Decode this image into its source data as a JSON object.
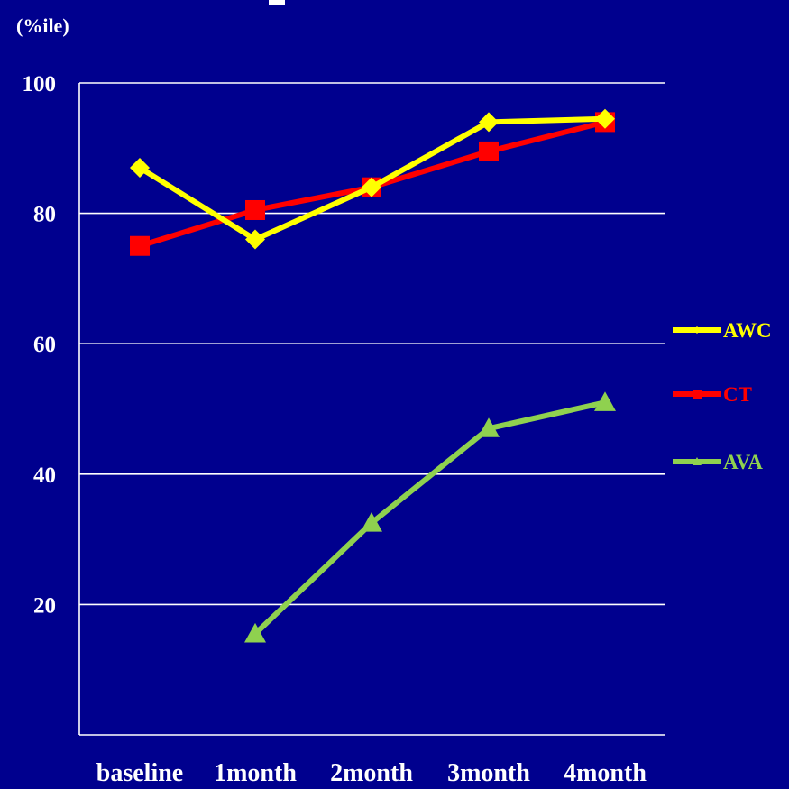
{
  "chart_data": {
    "type": "line",
    "title": "",
    "ylabel": "(%ile)",
    "xlabel": "",
    "categories": [
      "baseline",
      "1month",
      "2month",
      "3month",
      "4month"
    ],
    "ylim": [
      0,
      100
    ],
    "yticks": [
      20,
      40,
      60,
      80,
      100
    ],
    "grid": true,
    "legend_position": "right",
    "series": [
      {
        "name": "AWC",
        "color": "#ffff00",
        "marker": "diamond",
        "values": [
          87,
          76,
          84,
          94,
          94.5
        ]
      },
      {
        "name": "CT",
        "color": "#ff0000",
        "marker": "square",
        "values": [
          75,
          80.5,
          84,
          89.5,
          94
        ]
      },
      {
        "name": "AVA",
        "color": "#8fd14f",
        "marker": "triangle",
        "values": [
          null,
          15.5,
          32.5,
          47,
          51
        ]
      }
    ]
  }
}
